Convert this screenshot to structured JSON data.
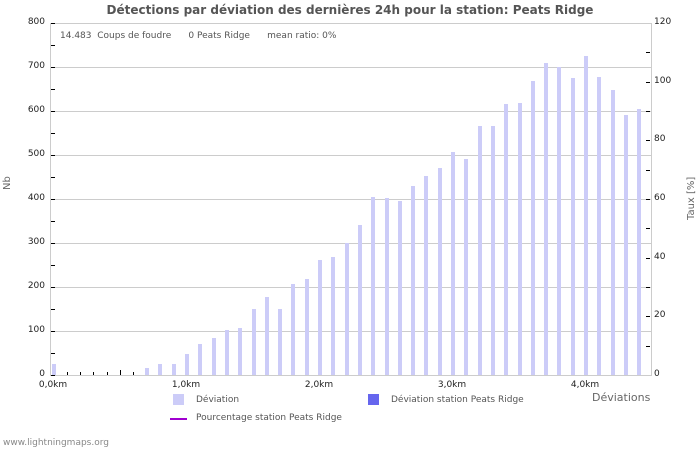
{
  "chart_data": {
    "type": "bar",
    "title": "Détections par déviation des dernières 24h pour la station: Peats Ridge",
    "xlabel": "Déviations",
    "ylabel": "Nb",
    "ylabel_right": "Taux [%]",
    "ylim": [
      0,
      800
    ],
    "ylim_right": [
      0,
      120
    ],
    "yticks": [
      "0",
      "100",
      "200",
      "300",
      "400",
      "500",
      "600",
      "700",
      "800"
    ],
    "yticks_right": [
      "0",
      "20",
      "40",
      "60",
      "80",
      "100",
      "120"
    ],
    "xticks": [
      "0,0km",
      "1,0km",
      "2,0km",
      "3,0km",
      "4,0km"
    ],
    "categories": [
      "0.0",
      "0.1",
      "0.2",
      "0.3",
      "0.4",
      "0.5",
      "0.6",
      "0.7",
      "0.8",
      "0.9",
      "1.0",
      "1.1",
      "1.2",
      "1.3",
      "1.4",
      "1.5",
      "1.6",
      "1.7",
      "1.8",
      "1.9",
      "2.0",
      "2.1",
      "2.2",
      "2.3",
      "2.4",
      "2.5",
      "2.6",
      "2.7",
      "2.8",
      "2.9",
      "3.0",
      "3.1",
      "3.2",
      "3.3",
      "3.4",
      "3.5",
      "3.6",
      "3.7",
      "3.8",
      "3.9",
      "4.0",
      "4.1",
      "4.2",
      "4.3",
      "4.4"
    ],
    "series": [
      {
        "name": "Déviation",
        "color": "#ccccf8",
        "values": [
          25,
          0,
          0,
          0,
          0,
          0,
          0,
          15,
          25,
          25,
          48,
          70,
          85,
          102,
          107,
          150,
          178,
          150,
          207,
          218,
          261,
          268,
          300,
          340,
          405,
          403,
          396,
          430,
          453,
          470,
          507,
          491,
          566,
          566,
          617,
          619,
          668,
          709,
          699,
          675,
          725,
          677,
          648,
          590,
          605
        ]
      },
      {
        "name": "Déviation station Peats Ridge",
        "color": "#6666ee",
        "values": []
      },
      {
        "name": "Pourcentage station Peats Ridge",
        "color": "#a000d0",
        "values": []
      }
    ],
    "legend_position": "bottom",
    "grid": true
  },
  "info": {
    "count": "14.483",
    "count_label": "Coups de foudre",
    "station": "0 Peats Ridge",
    "mean_ratio": "mean ratio: 0%"
  },
  "legend": {
    "dev": "Déviation",
    "dev_station": "Déviation station Peats Ridge",
    "pct_station": "Pourcentage station Peats Ridge"
  },
  "footer": "www.lightningmaps.org"
}
